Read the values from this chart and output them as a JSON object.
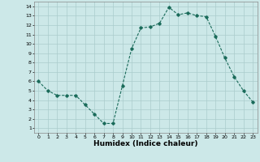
{
  "x": [
    0,
    1,
    2,
    3,
    4,
    5,
    6,
    7,
    8,
    9,
    10,
    11,
    12,
    13,
    14,
    15,
    16,
    17,
    18,
    19,
    20,
    21,
    22,
    23
  ],
  "y": [
    6,
    5,
    4.5,
    4.5,
    4.5,
    3.5,
    2.5,
    1.5,
    1.5,
    5.5,
    9.5,
    11.7,
    11.8,
    12.2,
    13.9,
    13.1,
    13.3,
    13.0,
    12.9,
    10.8,
    8.5,
    6.5,
    5.0,
    3.8
  ],
  "line_color": "#1a6b5a",
  "marker": "D",
  "marker_size": 1.8,
  "bg_color": "#cce8e8",
  "grid_color": "#aacccc",
  "xlabel": "Humidex (Indice chaleur)",
  "ylim": [
    1,
    14
  ],
  "xlim": [
    -0.5,
    23.5
  ],
  "yticks": [
    1,
    2,
    3,
    4,
    5,
    6,
    7,
    8,
    9,
    10,
    11,
    12,
    13,
    14
  ],
  "xticks": [
    0,
    1,
    2,
    3,
    4,
    5,
    6,
    7,
    8,
    9,
    10,
    11,
    12,
    13,
    14,
    15,
    16,
    17,
    18,
    19,
    20,
    21,
    22,
    23
  ],
  "tick_fontsize": 4.5,
  "xlabel_fontsize": 6.5,
  "linewidth": 0.8,
  "spine_color": "#888888"
}
